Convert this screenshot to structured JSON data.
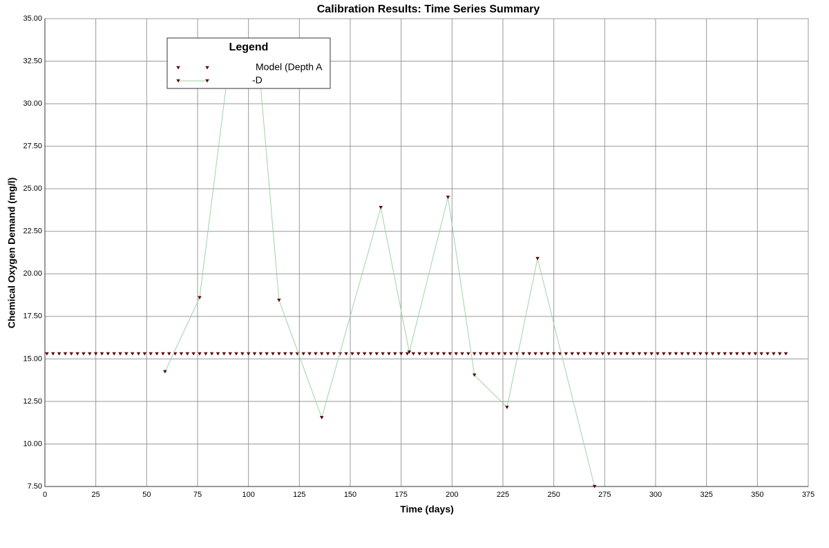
{
  "chart_data": {
    "type": "scatter",
    "title": "Calibration Results: Time Series Summary",
    "x_label": "Time (days)",
    "y_label": "Chemical Oxygen Demand (mg/l)",
    "legend_title": "Legend",
    "xlim": [
      0,
      375
    ],
    "ylim": [
      7.5,
      35
    ],
    "xticks": [
      0,
      25,
      50,
      75,
      100,
      125,
      150,
      175,
      200,
      225,
      250,
      275,
      300,
      325,
      350,
      375
    ],
    "yticks": [
      {
        "value": 7.5,
        "label": "7.50"
      },
      {
        "value": 10,
        "label": "10.00"
      },
      {
        "value": 12.5,
        "label": "12.50"
      },
      {
        "value": 15,
        "label": "15.00"
      },
      {
        "value": 17.5,
        "label": "17.50"
      },
      {
        "value": 20,
        "label": "20.00"
      },
      {
        "value": 22.5,
        "label": "22.50"
      },
      {
        "value": 25,
        "label": "25.00"
      },
      {
        "value": 27.5,
        "label": "27.50"
      },
      {
        "value": 30,
        "label": "30.00"
      },
      {
        "value": 32.5,
        "label": "32.50"
      },
      {
        "value": 35,
        "label": "35.00"
      }
    ],
    "grid": true,
    "series": [
      {
        "name": "Model (Depth A",
        "color": "#5a0a0a",
        "line": false,
        "x": [
          1,
          4,
          7,
          10,
          13,
          16,
          19,
          22,
          25,
          28,
          31,
          34,
          37,
          40,
          43,
          46,
          49,
          52,
          55,
          58,
          61,
          64,
          67,
          70,
          73,
          76,
          79,
          82,
          85,
          88,
          91,
          94,
          97,
          100,
          103,
          106,
          109,
          112,
          115,
          118,
          121,
          124,
          127,
          130,
          133,
          136,
          139,
          142,
          145,
          148,
          151,
          154,
          157,
          160,
          163,
          166,
          169,
          172,
          175,
          178,
          181,
          184,
          187,
          190,
          193,
          196,
          199,
          202,
          205,
          208,
          211,
          214,
          217,
          220,
          223,
          226,
          229,
          232,
          235,
          238,
          241,
          244,
          247,
          250,
          253,
          256,
          259,
          262,
          265,
          268,
          271,
          274,
          277,
          280,
          283,
          286,
          289,
          292,
          295,
          298,
          301,
          304,
          307,
          310,
          313,
          316,
          319,
          322,
          325,
          328,
          331,
          334,
          337,
          340,
          343,
          346,
          349,
          352,
          355,
          358,
          361,
          364
        ],
        "values": [
          15.3,
          15.3,
          15.3,
          15.3,
          15.3,
          15.3,
          15.3,
          15.3,
          15.3,
          15.3,
          15.3,
          15.3,
          15.3,
          15.3,
          15.3,
          15.3,
          15.3,
          15.3,
          15.3,
          15.3,
          15.3,
          15.3,
          15.3,
          15.3,
          15.3,
          15.3,
          15.3,
          15.3,
          15.3,
          15.3,
          15.3,
          15.3,
          15.3,
          15.3,
          15.3,
          15.3,
          15.3,
          15.3,
          15.3,
          15.3,
          15.3,
          15.3,
          15.3,
          15.3,
          15.3,
          15.3,
          15.3,
          15.3,
          15.3,
          15.3,
          15.3,
          15.3,
          15.3,
          15.3,
          15.3,
          15.3,
          15.3,
          15.3,
          15.3,
          15.3,
          15.3,
          15.3,
          15.3,
          15.3,
          15.3,
          15.3,
          15.3,
          15.3,
          15.3,
          15.3,
          15.3,
          15.3,
          15.3,
          15.3,
          15.3,
          15.3,
          15.3,
          15.3,
          15.3,
          15.3,
          15.3,
          15.3,
          15.3,
          15.3,
          15.3,
          15.3,
          15.3,
          15.3,
          15.3,
          15.3,
          15.3,
          15.3,
          15.3,
          15.3,
          15.3,
          15.3,
          15.3,
          15.3,
          15.3,
          15.3,
          15.3,
          15.3,
          15.3,
          15.3,
          15.3,
          15.3,
          15.3,
          15.3,
          15.3,
          15.3,
          15.3,
          15.3,
          15.3,
          15.3,
          15.3,
          15.3,
          15.3,
          15.3,
          15.3,
          15.3,
          15.3,
          15.3
        ]
      },
      {
        "name": "-D",
        "color": "#5a0a0a",
        "line": true,
        "line_color": "#9fd3a5",
        "x": [
          59,
          76,
          89,
          106,
          115,
          136,
          165,
          179,
          198,
          211,
          227,
          242,
          270
        ],
        "values": [
          14.25,
          18.6,
          31.0,
          31.0,
          18.45,
          11.55,
          23.9,
          15.4,
          24.5,
          14.05,
          12.15,
          20.9,
          7.5
        ]
      }
    ]
  }
}
